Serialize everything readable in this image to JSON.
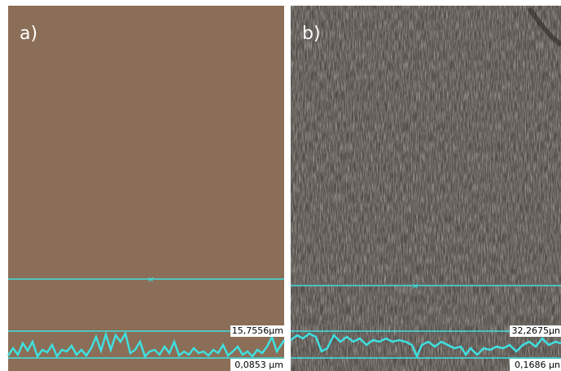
{
  "panels": [
    {
      "label": "a)",
      "max_height": "15,7556µm",
      "min_height": "0,0853 µm"
    },
    {
      "label": "b)",
      "max_height": "32,2675µn",
      "min_height": "0,1686 µn"
    }
  ]
}
